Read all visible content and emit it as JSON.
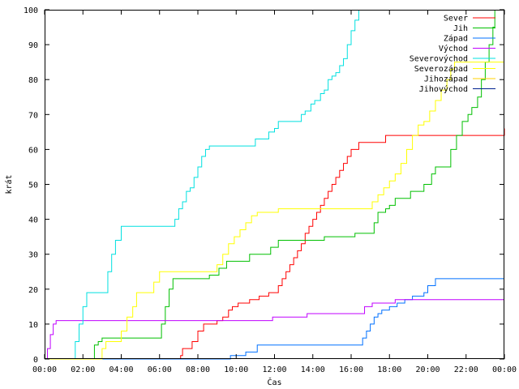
{
  "chart_data": {
    "type": "line",
    "title": "",
    "xlabel": "Čas",
    "ylabel": "krát",
    "xlim": [
      0,
      24
    ],
    "ylim": [
      0,
      100
    ],
    "grid": false,
    "legend_placement": "top-right",
    "x_ticks": [
      {
        "value": 0,
        "label": "00:00"
      },
      {
        "value": 2,
        "label": "02:00"
      },
      {
        "value": 4,
        "label": "04:00"
      },
      {
        "value": 6,
        "label": "06:00"
      },
      {
        "value": 8,
        "label": "08:00"
      },
      {
        "value": 10,
        "label": "10:00"
      },
      {
        "value": 12,
        "label": "12:00"
      },
      {
        "value": 14,
        "label": "14:00"
      },
      {
        "value": 16,
        "label": "16:00"
      },
      {
        "value": 18,
        "label": "18:00"
      },
      {
        "value": 20,
        "label": "20:00"
      },
      {
        "value": 22,
        "label": "22:00"
      },
      {
        "value": 24,
        "label": "00:00"
      }
    ],
    "y_ticks": [
      {
        "value": 0,
        "label": "0"
      },
      {
        "value": 10,
        "label": "10"
      },
      {
        "value": 20,
        "label": "20"
      },
      {
        "value": 30,
        "label": "30"
      },
      {
        "value": 40,
        "label": "40"
      },
      {
        "value": 50,
        "label": "50"
      },
      {
        "value": 60,
        "label": "60"
      },
      {
        "value": 70,
        "label": "70"
      },
      {
        "value": 80,
        "label": "80"
      },
      {
        "value": 90,
        "label": "90"
      },
      {
        "value": 100,
        "label": "100"
      }
    ],
    "series": [
      {
        "name": "Sever",
        "color": "#ff0000",
        "points": [
          [
            0,
            0
          ],
          [
            7.0,
            0
          ],
          [
            7.1,
            1
          ],
          [
            7.2,
            3
          ],
          [
            7.6,
            3
          ],
          [
            7.7,
            5
          ],
          [
            7.9,
            5
          ],
          [
            8.0,
            8
          ],
          [
            8.2,
            8
          ],
          [
            8.3,
            10
          ],
          [
            8.8,
            10
          ],
          [
            9.0,
            11
          ],
          [
            9.3,
            12
          ],
          [
            9.6,
            14
          ],
          [
            9.8,
            15
          ],
          [
            10.0,
            15
          ],
          [
            10.1,
            16
          ],
          [
            10.6,
            16
          ],
          [
            10.7,
            17
          ],
          [
            11.1,
            17
          ],
          [
            11.2,
            18
          ],
          [
            11.5,
            18
          ],
          [
            11.7,
            19
          ],
          [
            12.0,
            19
          ],
          [
            12.2,
            21
          ],
          [
            12.4,
            23
          ],
          [
            12.6,
            25
          ],
          [
            12.8,
            27
          ],
          [
            13.0,
            29
          ],
          [
            13.2,
            31
          ],
          [
            13.4,
            33
          ],
          [
            13.6,
            36
          ],
          [
            13.8,
            38
          ],
          [
            14.0,
            40
          ],
          [
            14.2,
            42
          ],
          [
            14.4,
            44
          ],
          [
            14.6,
            46
          ],
          [
            14.8,
            48
          ],
          [
            15.0,
            50
          ],
          [
            15.2,
            52
          ],
          [
            15.4,
            54
          ],
          [
            15.6,
            56
          ],
          [
            15.8,
            58
          ],
          [
            16.0,
            60
          ],
          [
            16.2,
            60
          ],
          [
            16.4,
            62
          ],
          [
            17.6,
            62
          ],
          [
            17.8,
            64
          ],
          [
            24.0,
            64
          ],
          [
            24.0,
            66
          ]
        ]
      },
      {
        "name": "Jih",
        "color": "#00c000",
        "points": [
          [
            0,
            0
          ],
          [
            2.5,
            0
          ],
          [
            2.6,
            4
          ],
          [
            2.8,
            5
          ],
          [
            3.0,
            6
          ],
          [
            6.0,
            6
          ],
          [
            6.1,
            10
          ],
          [
            6.3,
            15
          ],
          [
            6.5,
            20
          ],
          [
            6.7,
            23
          ],
          [
            8.5,
            23
          ],
          [
            8.6,
            24
          ],
          [
            9.0,
            24
          ],
          [
            9.1,
            26
          ],
          [
            9.4,
            26
          ],
          [
            9.5,
            28
          ],
          [
            10.6,
            28
          ],
          [
            10.7,
            30
          ],
          [
            11.6,
            30
          ],
          [
            11.8,
            32
          ],
          [
            12.0,
            32
          ],
          [
            12.2,
            34
          ],
          [
            14.5,
            34
          ],
          [
            14.6,
            35
          ],
          [
            16.1,
            35
          ],
          [
            16.2,
            36
          ],
          [
            17.1,
            36
          ],
          [
            17.2,
            39
          ],
          [
            17.4,
            42
          ],
          [
            17.7,
            42
          ],
          [
            17.8,
            43
          ],
          [
            18.0,
            44
          ],
          [
            18.3,
            46
          ],
          [
            19.0,
            46
          ],
          [
            19.1,
            48
          ],
          [
            19.6,
            48
          ],
          [
            19.8,
            50
          ],
          [
            20.2,
            53
          ],
          [
            20.4,
            55
          ],
          [
            21.0,
            55
          ],
          [
            21.2,
            60
          ],
          [
            21.5,
            64
          ],
          [
            21.8,
            68
          ],
          [
            22.1,
            70
          ],
          [
            22.3,
            72
          ],
          [
            22.6,
            75
          ],
          [
            22.8,
            80
          ],
          [
            23.0,
            85
          ],
          [
            23.2,
            90
          ],
          [
            23.4,
            95
          ],
          [
            23.5,
            100
          ]
        ]
      },
      {
        "name": "Západ",
        "color": "#0070ff",
        "points": [
          [
            0,
            0
          ],
          [
            9.6,
            0
          ],
          [
            9.7,
            1
          ],
          [
            10.4,
            1
          ],
          [
            10.5,
            2
          ],
          [
            11.0,
            2
          ],
          [
            11.1,
            4
          ],
          [
            16.5,
            4
          ],
          [
            16.6,
            6
          ],
          [
            16.8,
            8
          ],
          [
            17.0,
            10
          ],
          [
            17.2,
            12
          ],
          [
            17.4,
            13
          ],
          [
            17.6,
            14
          ],
          [
            18.0,
            15
          ],
          [
            18.4,
            16
          ],
          [
            18.8,
            17
          ],
          [
            19.2,
            18
          ],
          [
            19.8,
            19
          ],
          [
            20.0,
            21
          ],
          [
            20.4,
            23
          ],
          [
            24.0,
            23
          ]
        ]
      },
      {
        "name": "Východ",
        "color": "#c000ff",
        "points": [
          [
            0,
            0
          ],
          [
            0.15,
            3
          ],
          [
            0.3,
            7
          ],
          [
            0.45,
            10
          ],
          [
            0.6,
            11
          ],
          [
            11.8,
            11
          ],
          [
            11.9,
            12
          ],
          [
            13.6,
            12
          ],
          [
            13.7,
            13
          ],
          [
            16.6,
            13
          ],
          [
            16.7,
            15
          ],
          [
            17.1,
            16
          ],
          [
            18.2,
            16
          ],
          [
            18.3,
            17
          ],
          [
            24.0,
            17
          ]
        ]
      },
      {
        "name": "Severovýchod",
        "color": "#00e0e0",
        "points": [
          [
            0,
            0
          ],
          [
            1.5,
            0
          ],
          [
            1.6,
            5
          ],
          [
            1.8,
            10
          ],
          [
            2.0,
            15
          ],
          [
            2.2,
            19
          ],
          [
            3.1,
            19
          ],
          [
            3.3,
            25
          ],
          [
            3.5,
            30
          ],
          [
            3.7,
            34
          ],
          [
            4.0,
            38
          ],
          [
            6.6,
            38
          ],
          [
            6.8,
            40
          ],
          [
            7.0,
            43
          ],
          [
            7.2,
            45
          ],
          [
            7.4,
            48
          ],
          [
            7.6,
            49
          ],
          [
            7.8,
            52
          ],
          [
            8.0,
            55
          ],
          [
            8.2,
            58
          ],
          [
            8.4,
            60
          ],
          [
            8.6,
            61
          ],
          [
            10.8,
            61
          ],
          [
            11.0,
            63
          ],
          [
            11.5,
            63
          ],
          [
            11.7,
            65
          ],
          [
            12.0,
            66
          ],
          [
            12.2,
            68
          ],
          [
            13.2,
            68
          ],
          [
            13.4,
            70
          ],
          [
            13.6,
            71
          ],
          [
            13.9,
            73
          ],
          [
            14.1,
            74
          ],
          [
            14.4,
            76
          ],
          [
            14.6,
            77
          ],
          [
            14.8,
            80
          ],
          [
            15.0,
            81
          ],
          [
            15.2,
            82
          ],
          [
            15.4,
            84
          ],
          [
            15.6,
            86
          ],
          [
            15.8,
            90
          ],
          [
            16.0,
            94
          ],
          [
            16.2,
            97
          ],
          [
            16.4,
            100
          ]
        ]
      },
      {
        "name": "Severozápad",
        "color": "#ffff00",
        "points": [
          [
            0,
            0
          ],
          [
            2.8,
            0
          ],
          [
            3.0,
            3
          ],
          [
            3.2,
            5
          ],
          [
            3.8,
            5
          ],
          [
            4.0,
            8
          ],
          [
            4.3,
            12
          ],
          [
            4.6,
            15
          ],
          [
            4.8,
            19
          ],
          [
            5.5,
            19
          ],
          [
            5.7,
            22
          ],
          [
            6.0,
            25
          ],
          [
            8.8,
            25
          ],
          [
            9.0,
            27
          ],
          [
            9.3,
            30
          ],
          [
            9.6,
            33
          ],
          [
            9.9,
            35
          ],
          [
            10.2,
            37
          ],
          [
            10.5,
            39
          ],
          [
            10.8,
            41
          ],
          [
            11.1,
            42
          ],
          [
            12.0,
            42
          ],
          [
            12.2,
            43
          ],
          [
            16.8,
            43
          ],
          [
            17.1,
            45
          ],
          [
            17.4,
            47
          ],
          [
            17.7,
            49
          ],
          [
            18.0,
            51
          ],
          [
            18.3,
            53
          ],
          [
            18.6,
            56
          ],
          [
            18.9,
            60
          ],
          [
            19.2,
            64
          ],
          [
            19.5,
            67
          ],
          [
            19.8,
            68
          ],
          [
            20.1,
            71
          ],
          [
            20.4,
            74
          ],
          [
            20.7,
            77
          ],
          [
            21.0,
            80
          ],
          [
            21.2,
            83
          ],
          [
            21.4,
            85
          ],
          [
            24.0,
            85
          ]
        ]
      },
      {
        "name": "Jihozápad",
        "color": "#ffd000",
        "points": []
      },
      {
        "name": "Jihovýchod",
        "color": "#002090",
        "points": []
      }
    ]
  }
}
